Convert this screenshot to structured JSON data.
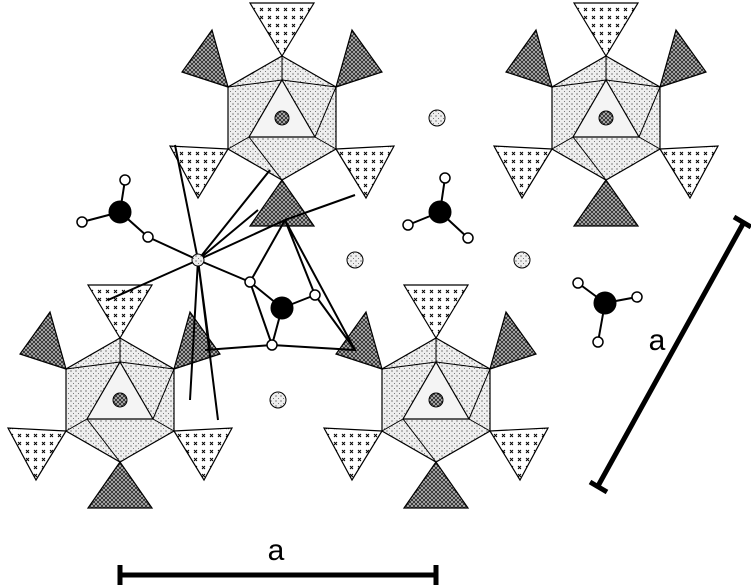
{
  "scale_bars": {
    "diagonal": {
      "label": "a"
    },
    "horizontal": {
      "label": "a"
    }
  }
}
